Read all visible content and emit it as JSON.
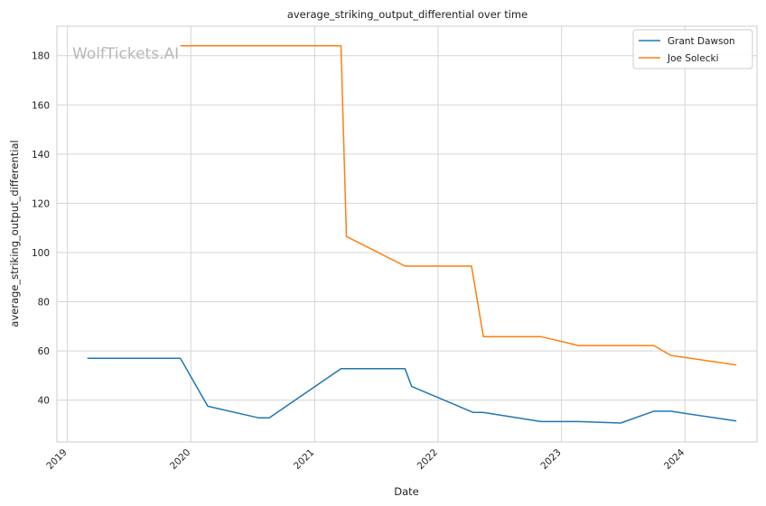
{
  "chart_data": {
    "type": "line",
    "title": "average_striking_output_differential over time",
    "xlabel": "Date",
    "ylabel": "average_striking_output_differential",
    "watermark": "WolfTickets.AI",
    "x_range": [
      "2018-12-01",
      "2024-08-01"
    ],
    "ylim": [
      23,
      192
    ],
    "x_ticks": [
      {
        "date": "2019-01-01",
        "label": "2019"
      },
      {
        "date": "2020-01-01",
        "label": "2020"
      },
      {
        "date": "2021-01-01",
        "label": "2021"
      },
      {
        "date": "2022-01-01",
        "label": "2022"
      },
      {
        "date": "2023-01-01",
        "label": "2023"
      },
      {
        "date": "2024-01-01",
        "label": "2024"
      }
    ],
    "y_ticks": [
      40,
      60,
      80,
      100,
      120,
      140,
      160,
      180
    ],
    "grid": true,
    "legend_position": "top-right",
    "series": [
      {
        "name": "Grant Dawson",
        "color": "#1f77b4",
        "points": [
          {
            "x": "2019-03-01",
            "y": 57
          },
          {
            "x": "2019-12-01",
            "y": 57
          },
          {
            "x": "2020-02-20",
            "y": 37.5
          },
          {
            "x": "2020-07-20",
            "y": 32.8
          },
          {
            "x": "2020-08-20",
            "y": 32.8
          },
          {
            "x": "2021-03-20",
            "y": 52.8
          },
          {
            "x": "2021-09-25",
            "y": 52.8
          },
          {
            "x": "2021-10-15",
            "y": 45.6
          },
          {
            "x": "2022-04-15",
            "y": 35
          },
          {
            "x": "2022-05-15",
            "y": 35
          },
          {
            "x": "2022-11-01",
            "y": 31.3
          },
          {
            "x": "2023-02-20",
            "y": 31.3
          },
          {
            "x": "2023-06-25",
            "y": 30.7
          },
          {
            "x": "2023-10-01",
            "y": 35.5
          },
          {
            "x": "2023-11-20",
            "y": 35.5
          },
          {
            "x": "2024-06-01",
            "y": 31.5
          }
        ]
      },
      {
        "name": "Joe Solecki",
        "color": "#ff7f0e",
        "points": [
          {
            "x": "2019-12-01",
            "y": 184
          },
          {
            "x": "2021-03-20",
            "y": 184
          },
          {
            "x": "2021-04-05",
            "y": 106.5
          },
          {
            "x": "2021-09-25",
            "y": 94.5
          },
          {
            "x": "2022-04-10",
            "y": 94.5
          },
          {
            "x": "2022-05-15",
            "y": 65.8
          },
          {
            "x": "2022-11-01",
            "y": 65.8
          },
          {
            "x": "2023-02-20",
            "y": 62.2
          },
          {
            "x": "2023-10-01",
            "y": 62.2
          },
          {
            "x": "2023-11-20",
            "y": 58.2
          },
          {
            "x": "2024-06-01",
            "y": 54.3
          }
        ]
      }
    ]
  }
}
